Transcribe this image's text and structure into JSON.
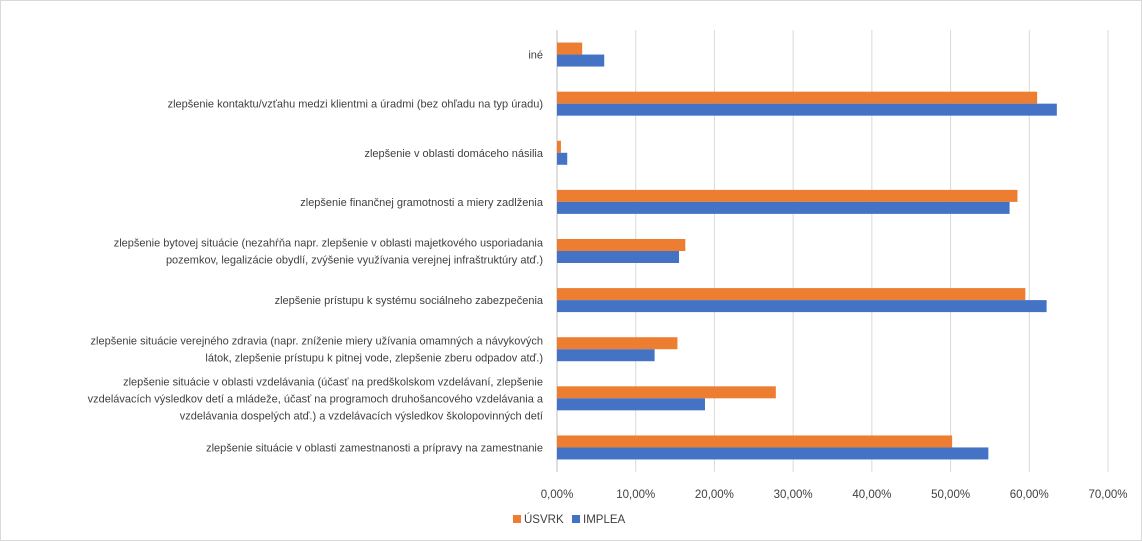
{
  "chart_data": {
    "type": "bar",
    "orientation": "horizontal",
    "title": "",
    "xlabel": "",
    "ylabel": "",
    "xlim": [
      0,
      0.7
    ],
    "x_tick_labels": [
      "0,00%",
      "10,00%",
      "20,00%",
      "30,00%",
      "40,00%",
      "50,00%",
      "60,00%",
      "70,00%"
    ],
    "x_ticks": [
      0,
      0.1,
      0.2,
      0.3,
      0.4,
      0.5,
      0.6,
      0.7
    ],
    "grid": "vertical",
    "legend_position": "bottom-left",
    "categories": [
      [
        "iné"
      ],
      [
        "zlepšenie kontaktu/vzťahu medzi klientmi a úradmi (bez ohľadu na typ úradu)"
      ],
      [
        "zlepšenie v oblasti domáceho násilia"
      ],
      [
        "zlepšenie finančnej gramotnosti a miery zadlženia"
      ],
      [
        "zlepšenie bytovej situácie (nezahŕňa napr. zlepšenie v oblasti majetkového usporiadania",
        "pozemkov, legalizácie obydlí, zvýšenie využívania verejnej infraštruktúry atď.)"
      ],
      [
        "zlepšenie prístupu k systému sociálneho zabezpečenia"
      ],
      [
        "zlepšenie situácie verejného zdravia (napr. zníženie miery užívania omamných a návykových",
        "látok, zlepšenie prístupu k pitnej vode, zlepšenie zberu odpadov atď.)"
      ],
      [
        "zlepšenie situácie v oblasti vzdelávania (účasť na predškolskom vzdelávaní, zlepšenie",
        "vzdelávacích výsledkov detí a mládeže, účasť na programoch druhošancového vzdelávania a",
        "vzdelávania dospelých atď.) a vzdelávacích výsledkov školopovinných detí"
      ],
      [
        "zlepšenie situácie v oblasti zamestnanosti a prípravy na zamestnanie"
      ]
    ],
    "series": [
      {
        "name": "ÚSVRK",
        "color": "#ed7d31",
        "values": [
          0.032,
          0.61,
          0.005,
          0.585,
          0.163,
          0.595,
          0.153,
          0.278,
          0.502
        ]
      },
      {
        "name": "IMPLEA",
        "color": "#4472c4",
        "values": [
          0.06,
          0.635,
          0.013,
          0.575,
          0.155,
          0.622,
          0.124,
          0.188,
          0.548
        ]
      }
    ],
    "gridline_color": "#d9d9d9",
    "axis_color": "#bfbfbf"
  }
}
